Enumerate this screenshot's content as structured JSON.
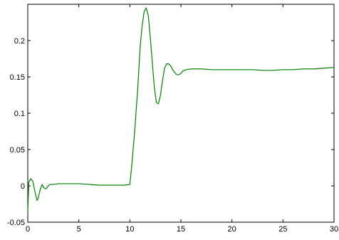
{
  "chart_data": {
    "type": "line",
    "title": "",
    "xlabel": "",
    "ylabel": "",
    "xlim": [
      0,
      30
    ],
    "ylim": [
      -0.05,
      0.25
    ],
    "grid": false,
    "x_ticks": [
      0,
      5,
      10,
      15,
      20,
      25,
      30
    ],
    "x_tick_labels": [
      "0",
      "5",
      "10",
      "15",
      "20",
      "25",
      "30"
    ],
    "y_ticks": [
      -0.05,
      0,
      0.05,
      0.1,
      0.15,
      0.2
    ],
    "y_tick_labels": [
      "-0.05",
      "0",
      "0.05",
      "0.1",
      "0.15",
      "0.2"
    ],
    "series": [
      {
        "color": "#008000",
        "x": [
          0,
          0.1,
          0.3,
          0.5,
          0.7,
          0.9,
          1.0,
          1.2,
          1.4,
          1.6,
          1.8,
          2.0,
          2.2,
          2.5,
          3,
          4,
          5,
          6,
          7,
          8,
          9,
          9.5,
          10.0,
          10.2,
          10.5,
          10.8,
          11.0,
          11.2,
          11.4,
          11.6,
          11.8,
          12.0,
          12.2,
          12.4,
          12.6,
          12.8,
          13.0,
          13.2,
          13.4,
          13.6,
          13.8,
          14.0,
          14.2,
          14.4,
          14.6,
          14.8,
          15.0,
          15.2,
          15.5,
          16,
          17,
          18,
          19,
          20,
          21,
          22,
          23,
          24,
          25,
          26,
          27,
          28,
          29,
          30
        ],
        "y": [
          -0.035,
          0.005,
          0.01,
          0.006,
          -0.008,
          -0.02,
          -0.018,
          -0.006,
          0.002,
          -0.003,
          -0.004,
          0.0,
          0.002,
          0.002,
          0.003,
          0.003,
          0.003,
          0.002,
          0.001,
          0.001,
          0.001,
          0.001,
          0.002,
          0.03,
          0.08,
          0.14,
          0.19,
          0.22,
          0.24,
          0.245,
          0.235,
          0.205,
          0.17,
          0.135,
          0.115,
          0.113,
          0.125,
          0.145,
          0.162,
          0.168,
          0.168,
          0.165,
          0.16,
          0.156,
          0.153,
          0.153,
          0.155,
          0.158,
          0.16,
          0.161,
          0.161,
          0.16,
          0.16,
          0.16,
          0.16,
          0.16,
          0.159,
          0.159,
          0.16,
          0.16,
          0.161,
          0.161,
          0.162,
          0.163
        ]
      }
    ]
  }
}
